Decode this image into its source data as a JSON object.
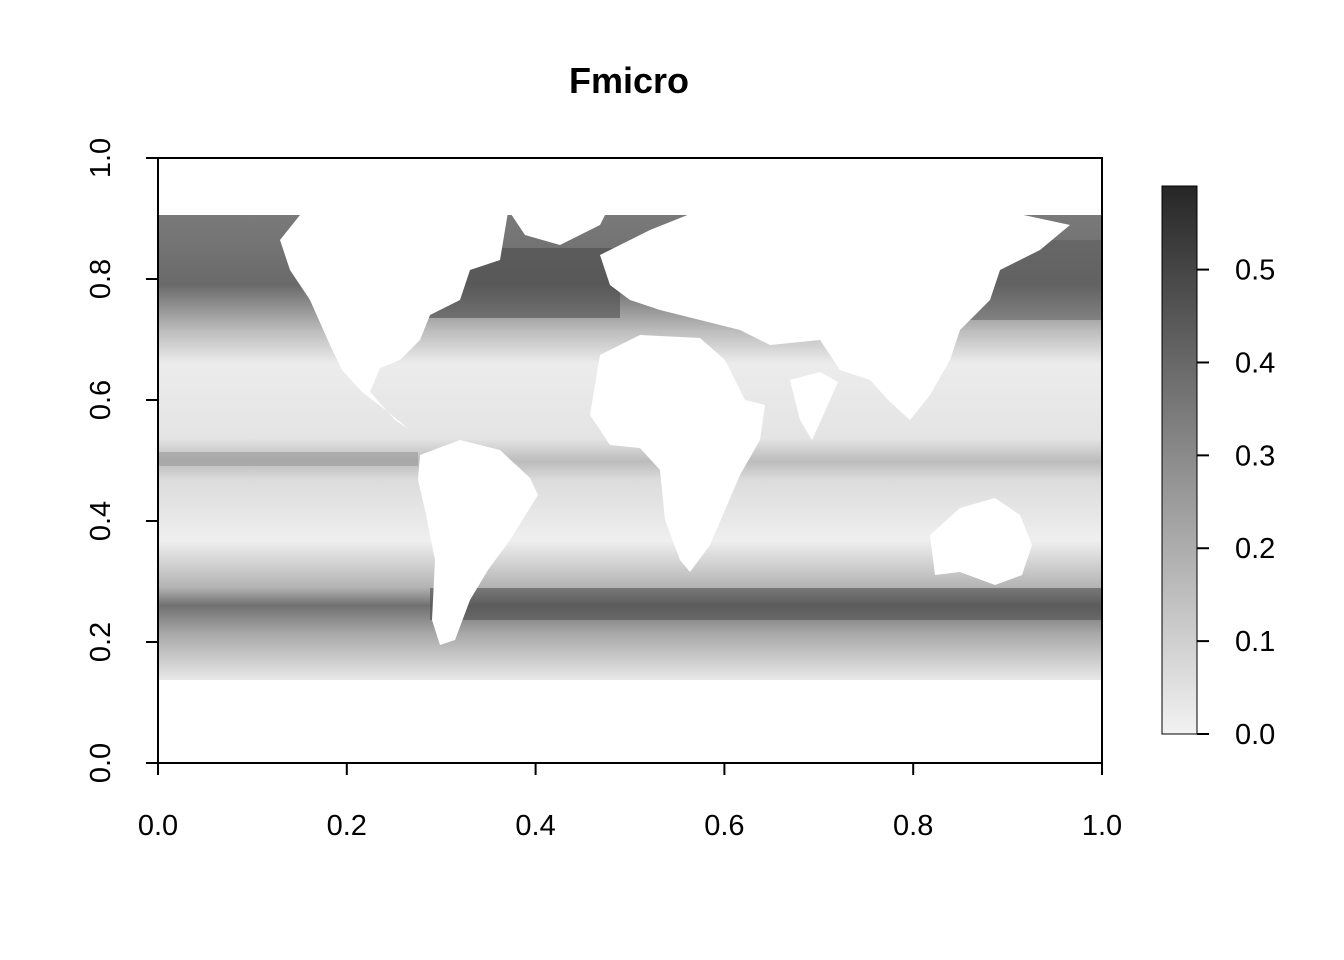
{
  "chart_data": {
    "type": "heatmap",
    "title": "Fmicro",
    "xlabel": "",
    "ylabel": "",
    "xlim": [
      0,
      1
    ],
    "ylim": [
      0,
      1
    ],
    "x_ticks": [
      0.0,
      0.2,
      0.4,
      0.6,
      0.8,
      1.0
    ],
    "x_tick_labels": [
      "0.0",
      "0.2",
      "0.4",
      "0.6",
      "0.8",
      "1.0"
    ],
    "y_ticks": [
      0.0,
      0.2,
      0.4,
      0.6,
      0.8,
      1.0
    ],
    "y_tick_labels": [
      "0.0",
      "0.2",
      "0.4",
      "0.6",
      "0.8",
      "1.0"
    ],
    "data_extent_y": [
      0.135,
      0.955
    ],
    "colorbar": {
      "range": [
        0.0,
        0.59
      ],
      "ticks": [
        0.0,
        0.1,
        0.2,
        0.3,
        0.4,
        0.5
      ],
      "tick_labels": [
        "0.0",
        "0.1",
        "0.2",
        "0.3",
        "0.4",
        "0.5"
      ],
      "color_low": "#f2f2f2",
      "color_high": "#262626"
    },
    "land_color": "#ffffff",
    "grid": false
  }
}
